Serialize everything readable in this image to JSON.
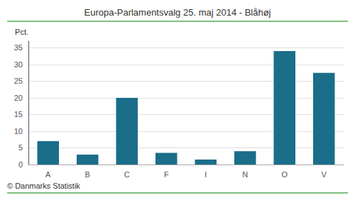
{
  "chart_data": {
    "type": "bar",
    "title": "Europa-Parlamentsvalg 25. maj 2014 - Blåhøj",
    "ylabel": "Pct.",
    "annotations": [
      "© Danmarks Statistik"
    ],
    "categories": [
      "A",
      "B",
      "C",
      "F",
      "I",
      "N",
      "O",
      "V"
    ],
    "values": [
      7.0,
      3.0,
      20.0,
      3.5,
      1.5,
      4.0,
      34.0,
      27.5
    ],
    "color": "#1a6e8a",
    "ylim": [
      0,
      37
    ],
    "yticks": [
      0,
      5,
      10,
      15,
      20,
      25,
      30,
      35
    ],
    "grid": true
  }
}
